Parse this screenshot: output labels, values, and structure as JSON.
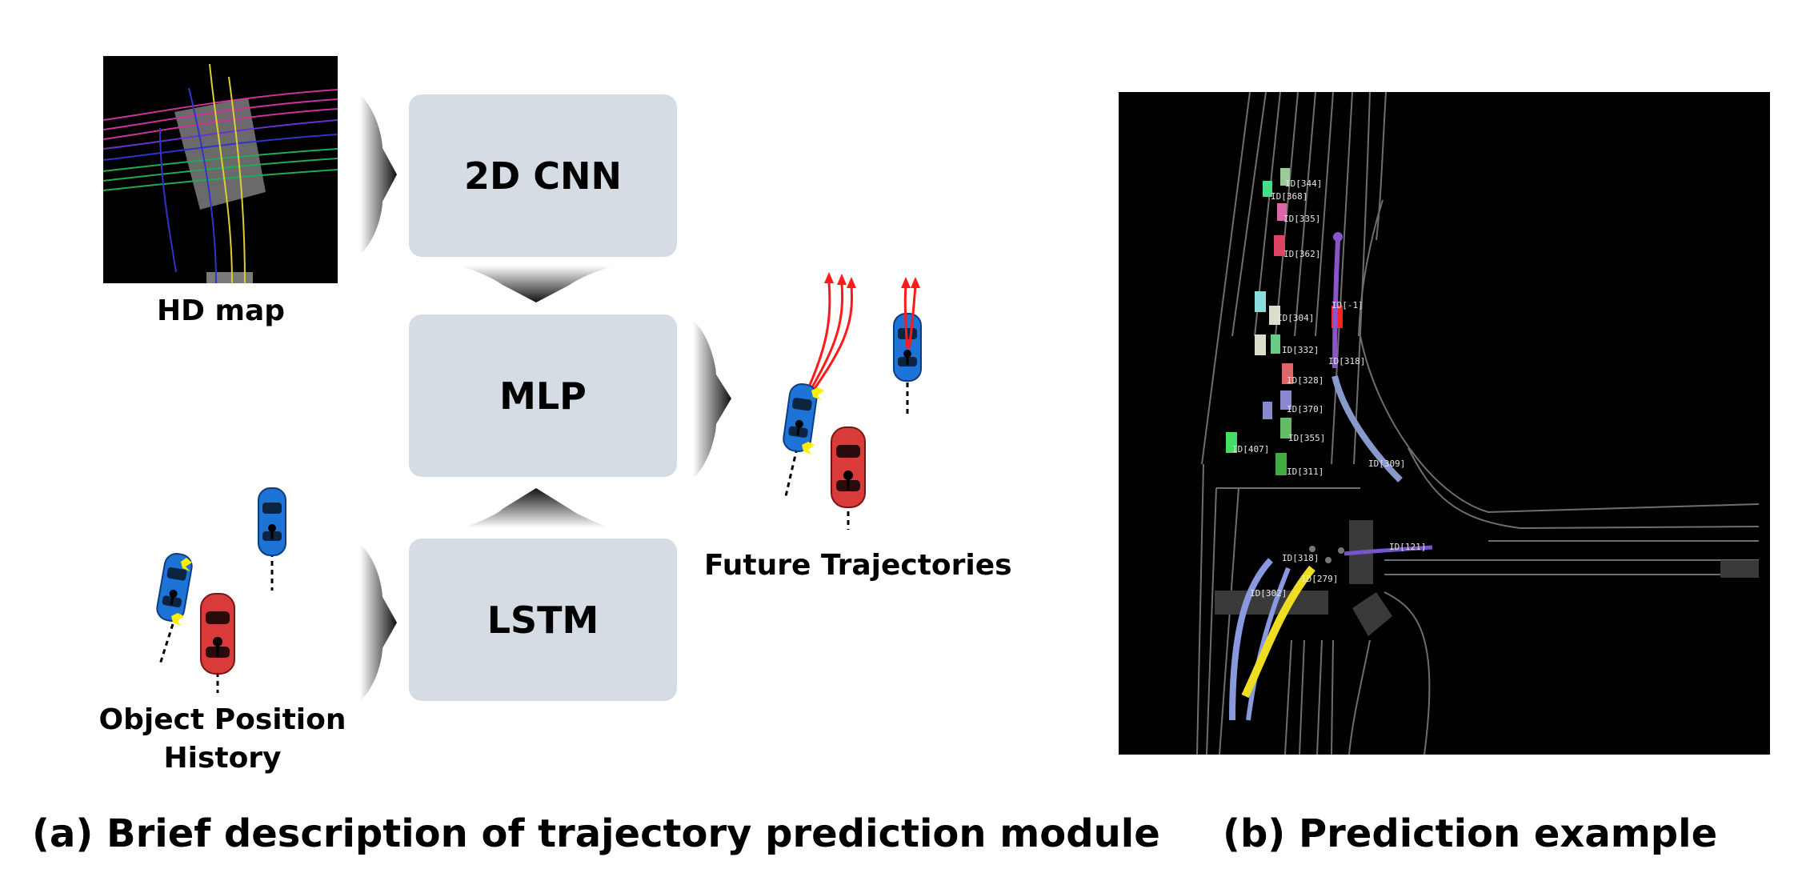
{
  "module": {
    "boxes": {
      "cnn": "2D CNN",
      "mlp": "MLP",
      "lstm": "LSTM"
    },
    "hd_map_label": "HD map",
    "history_label": "Object Position History",
    "future_label": "Future Trajectories"
  },
  "example": {
    "ids": [
      "ID[344]",
      "ID[368]",
      "ID[335]",
      "ID[362]",
      "ID[-1]",
      "ID[304]",
      "ID[332]",
      "ID[318]",
      "ID[328]",
      "ID[370]",
      "ID[355]",
      "ID[407]",
      "ID[311]",
      "ID[309]",
      "ID[121]",
      "ID[318]",
      "ID[279]",
      "ID[302]"
    ]
  },
  "captions": {
    "a": "(a) Brief description of trajectory prediction module",
    "b": "(b) Prediction example"
  },
  "colors": {
    "box_fill": "#d6dce4",
    "car_blue": "#1e73d6",
    "car_red": "#d93a3a",
    "trajectory": "#ff1a1a",
    "map_bg": "#000000"
  }
}
